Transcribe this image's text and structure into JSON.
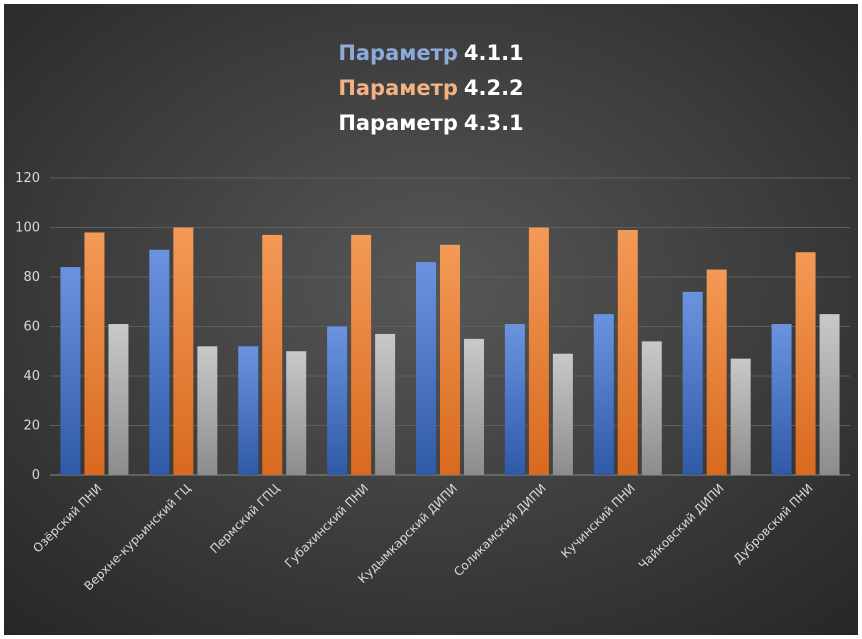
{
  "colors": {
    "series_1": "#4472c4",
    "series_2": "#ed7d31",
    "series_3": "#a5a5a5",
    "title_white": "#ffffff",
    "title_blue": "#8eaadb",
    "title_orange": "#f4b183"
  },
  "title_lines": [
    {
      "word": "Параметр",
      "code": "4.1.1"
    },
    {
      "word": "Параметр",
      "code": "4.2.2"
    },
    {
      "word": "Параметр",
      "code": "4.3.1"
    }
  ],
  "chart_data": {
    "type": "bar",
    "categories": [
      "Озёрский ПНИ",
      "Верхне-курьинский ГЦ",
      "Пермский ГПЦ",
      "Губахинский ПНИ",
      "Кудымкарский ДИПИ",
      "Соликамский ДИПИ",
      "Кучинский ПНИ",
      "Чайковский ДИПИ",
      "Дубровский ПНИ"
    ],
    "series": [
      {
        "name": "Параметр 4.1.1",
        "values": [
          84,
          91,
          52,
          60,
          86,
          61,
          65,
          74,
          61
        ]
      },
      {
        "name": "Параметр 4.2.2",
        "values": [
          98,
          100,
          97,
          97,
          93,
          100,
          99,
          83,
          90
        ]
      },
      {
        "name": "Параметр 4.3.1",
        "values": [
          61,
          52,
          50,
          57,
          55,
          49,
          54,
          47,
          65
        ]
      }
    ],
    "yticks": [
      0,
      20,
      40,
      60,
      80,
      100,
      120
    ],
    "ylim": [
      0,
      120
    ],
    "grid": true,
    "legend": "none"
  }
}
